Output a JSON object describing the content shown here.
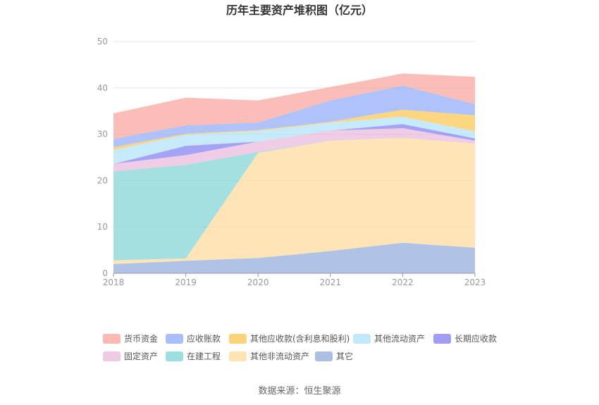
{
  "chart_data": {
    "type": "area",
    "stacked": true,
    "title": "历年主要资产堆积图（亿元）",
    "categories": [
      "2018",
      "2019",
      "2020",
      "2021",
      "2022",
      "2023"
    ],
    "ylim": [
      0,
      50
    ],
    "yticks": [
      0,
      10,
      20,
      30,
      40,
      50
    ],
    "grid": true,
    "series": [
      {
        "name": "其它",
        "color": "#8faadc",
        "values": [
          2.0,
          2.7,
          3.3,
          4.8,
          6.6,
          5.5
        ]
      },
      {
        "name": "其他非流动资产",
        "color": "#ffd99a",
        "values": [
          0.8,
          0.5,
          22.7,
          23.8,
          22.6,
          22.5
        ]
      },
      {
        "name": "在建工程",
        "color": "#7dd3d3",
        "values": [
          19.2,
          20.2,
          0.2,
          0.0,
          0.0,
          0.0
        ]
      },
      {
        "name": "固定资产",
        "color": "#eab8db",
        "values": [
          1.6,
          2.1,
          2.2,
          2.2,
          2.1,
          0.6
        ]
      },
      {
        "name": "长期应收款",
        "color": "#7f7df0",
        "values": [
          0.0,
          2.0,
          0.0,
          0.0,
          0.9,
          0.5
        ]
      },
      {
        "name": "其他流动资产",
        "color": "#aee1f7",
        "values": [
          3.0,
          2.4,
          2.3,
          1.7,
          1.6,
          1.5
        ]
      },
      {
        "name": "其他应收款(含利息和股利)",
        "color": "#fbc44b",
        "values": [
          0.6,
          0.2,
          0.2,
          0.2,
          1.5,
          3.5
        ]
      },
      {
        "name": "应收账款",
        "color": "#8ea8f8",
        "values": [
          1.8,
          1.8,
          1.6,
          4.6,
          5.2,
          2.4
        ]
      },
      {
        "name": "货币资金",
        "color": "#f8a199",
        "values": [
          5.5,
          6.0,
          4.8,
          2.9,
          2.6,
          5.9
        ]
      }
    ],
    "legend": [
      "货币资金",
      "应收账款",
      "其他应收款(含利息和股利)",
      "其他流动资产",
      "长期应收款",
      "固定资产",
      "在建工程",
      "其他非流动资产",
      "其它"
    ],
    "legend_position": "bottom"
  },
  "source_text": "数据来源：恒生聚源"
}
